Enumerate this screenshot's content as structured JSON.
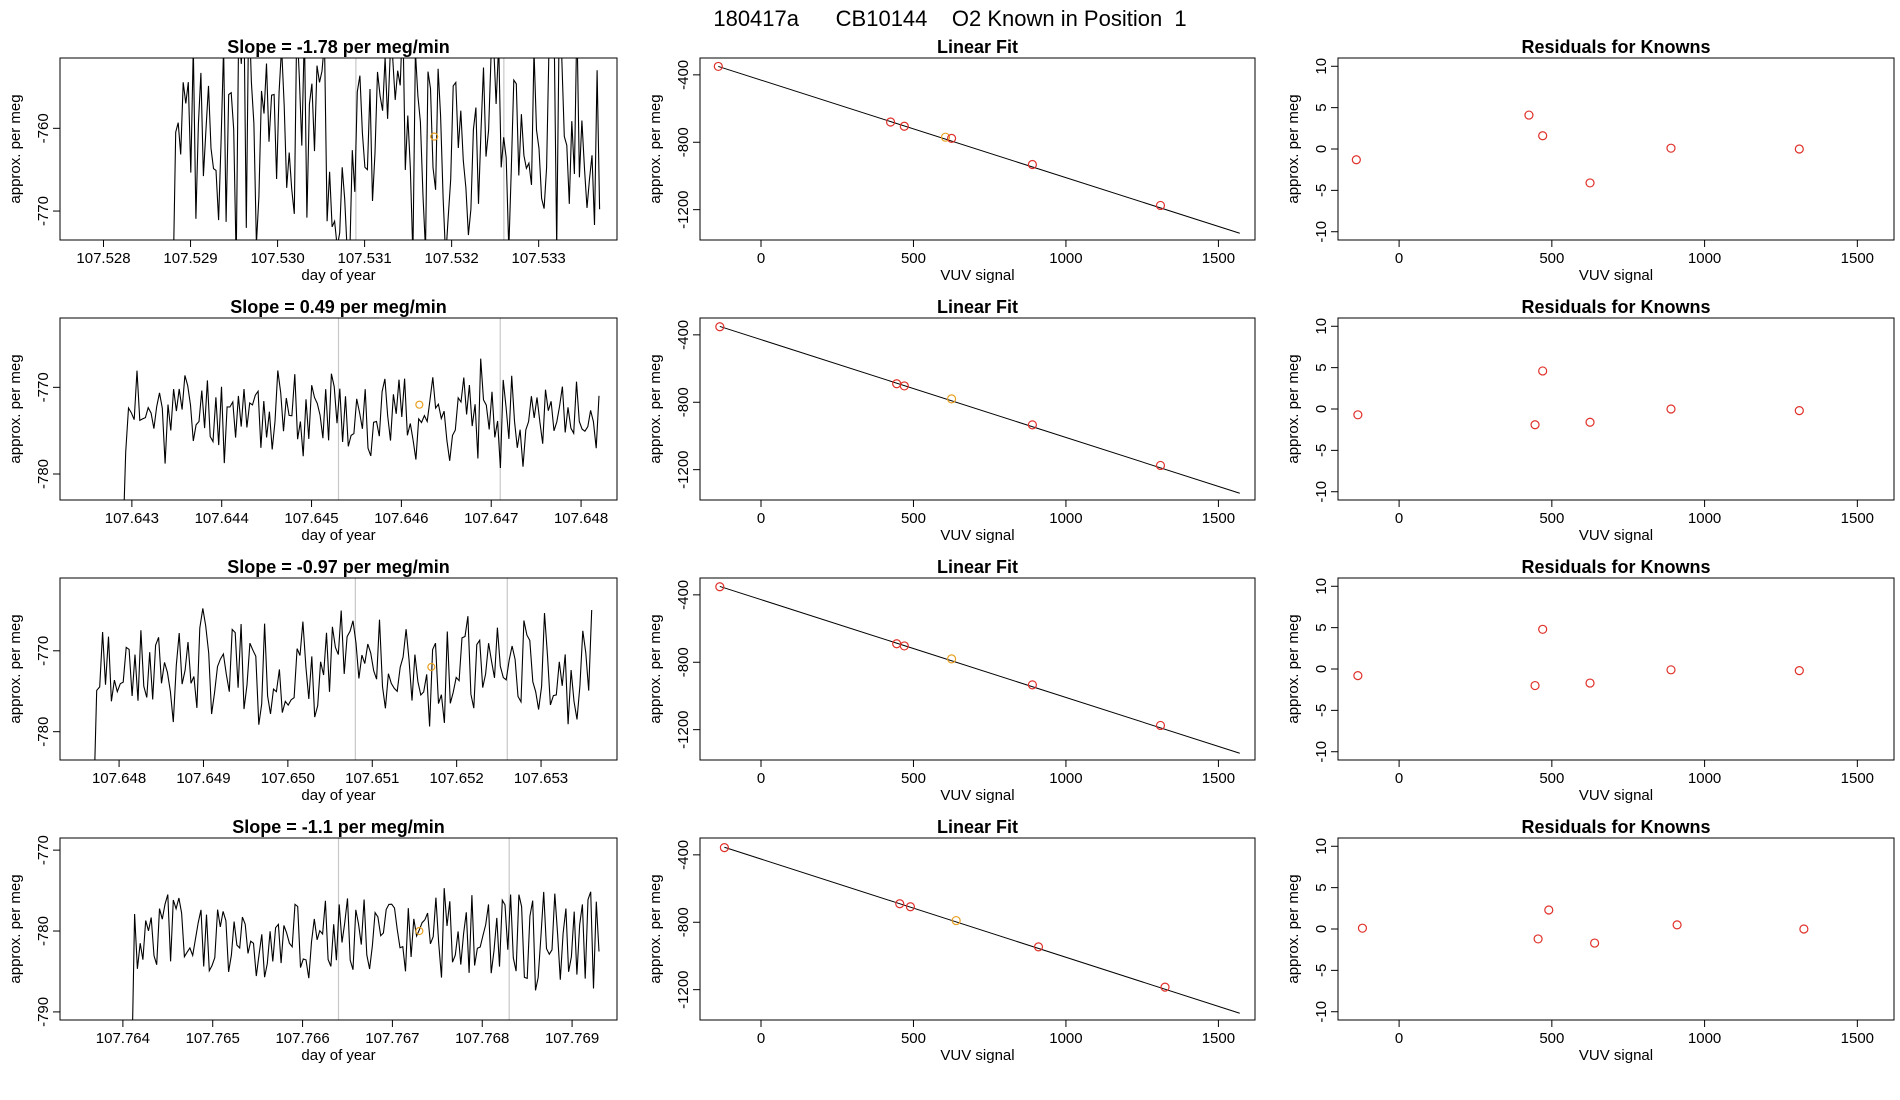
{
  "figure": {
    "title": "180417a      CB10144    O2 Known in Position  1"
  },
  "colors": {
    "line": "#000000",
    "known_marker": "#e0302a",
    "position_marker": "#e8a020",
    "vline": "#c8c8c8"
  },
  "chart_data": [
    {
      "type": "line",
      "row": 1,
      "kind": "timeseries",
      "title": "Slope =  -1.78  per meg/min",
      "xlabel": "day of year",
      "ylabel": "approx. per meg",
      "xlim": [
        107.5275,
        107.5339
      ],
      "ylim": [
        -773.5,
        -751.5
      ],
      "xticks": [
        107.528,
        107.529,
        107.53,
        107.531,
        107.532,
        107.533
      ],
      "xtick_labels": [
        "107.528",
        "107.529",
        "107.530",
        "107.531",
        "107.532",
        "107.533"
      ],
      "yticks": [
        -770,
        -760
      ],
      "ytick_labels": [
        "-770",
        "-760"
      ],
      "vlines": [
        107.5309,
        107.5326
      ],
      "marker": {
        "x": 107.5318,
        "y": -761
      },
      "series": {
        "x_start": 107.5288,
        "x_end": 107.5337,
        "center": -760,
        "amp": 11,
        "seed": 3
      }
    },
    {
      "type": "scatter",
      "row": 1,
      "kind": "fit",
      "title": "Linear Fit",
      "xlabel": "VUV signal",
      "ylabel": "approx. per meg",
      "xlim": [
        -200,
        1620
      ],
      "ylim": [
        -1380,
        -300
      ],
      "xticks": [
        0,
        500,
        1000,
        1500
      ],
      "xtick_labels": [
        "0",
        "500",
        "1000",
        "1500"
      ],
      "yticks": [
        -400,
        -800,
        -1200
      ],
      "ytick_labels": [
        "-400",
        "-800",
        "-1200"
      ],
      "line": {
        "x1": -140,
        "y1": -350,
        "x2": 1570,
        "y2": -1340
      },
      "points": [
        [
          -140,
          -350
        ],
        [
          425,
          -680
        ],
        [
          470,
          -705
        ],
        [
          605,
          -770
        ],
        [
          625,
          -777
        ],
        [
          890,
          -932
        ],
        [
          1310,
          -1175
        ]
      ],
      "highlight_index": 3
    },
    {
      "type": "scatter",
      "row": 1,
      "kind": "residuals",
      "title": "Residuals for Knowns",
      "xlabel": "VUV signal",
      "ylabel": "approx. per meg",
      "xlim": [
        -200,
        1620
      ],
      "ylim": [
        -11,
        11
      ],
      "xticks": [
        0,
        500,
        1000,
        1500
      ],
      "xtick_labels": [
        "0",
        "500",
        "1000",
        "1500"
      ],
      "yticks": [
        10,
        5,
        0,
        -5,
        -10
      ],
      "ytick_labels": [
        "10",
        "5",
        "0",
        "-5",
        "-10"
      ],
      "points": [
        [
          -140,
          -1.3
        ],
        [
          425,
          4.1
        ],
        [
          470,
          1.6
        ],
        [
          625,
          -4.1
        ],
        [
          890,
          0.1
        ],
        [
          1310,
          0.0
        ]
      ]
    },
    {
      "type": "line",
      "row": 2,
      "kind": "timeseries",
      "title": "Slope =  0.49  per meg/min",
      "xlabel": "day of year",
      "ylabel": "approx. per meg",
      "xlim": [
        107.6422,
        107.6484
      ],
      "ylim": [
        -783,
        -762
      ],
      "xticks": [
        107.643,
        107.644,
        107.645,
        107.646,
        107.647,
        107.648
      ],
      "xtick_labels": [
        "107.643",
        "107.644",
        "107.645",
        "107.646",
        "107.647",
        "107.648"
      ],
      "yticks": [
        -780,
        -770
      ],
      "ytick_labels": [
        "-780",
        "-770"
      ],
      "vlines": [
        107.6453,
        107.6471
      ],
      "marker": {
        "x": 107.6462,
        "y": -772
      },
      "series": {
        "x_start": 107.6429,
        "x_end": 107.6482,
        "center": -773,
        "amp": 4,
        "seed": 11
      }
    },
    {
      "type": "scatter",
      "row": 2,
      "kind": "fit",
      "title": "Linear Fit",
      "xlabel": "VUV signal",
      "ylabel": "approx. per meg",
      "xlim": [
        -200,
        1620
      ],
      "ylim": [
        -1380,
        -300
      ],
      "xticks": [
        0,
        500,
        1000,
        1500
      ],
      "xtick_labels": [
        "0",
        "500",
        "1000",
        "1500"
      ],
      "yticks": [
        -400,
        -800,
        -1200
      ],
      "ytick_labels": [
        "-400",
        "-800",
        "-1200"
      ],
      "line": {
        "x1": -135,
        "y1": -350,
        "x2": 1570,
        "y2": -1340
      },
      "points": [
        [
          -135,
          -352
        ],
        [
          445,
          -690
        ],
        [
          470,
          -703
        ],
        [
          625,
          -780
        ],
        [
          890,
          -934
        ],
        [
          1310,
          -1175
        ]
      ],
      "highlight_index": 3
    },
    {
      "type": "scatter",
      "row": 2,
      "kind": "residuals",
      "title": "Residuals for Knowns",
      "xlabel": "VUV signal",
      "ylabel": "approx. per meg",
      "xlim": [
        -200,
        1620
      ],
      "ylim": [
        -11,
        11
      ],
      "xticks": [
        0,
        500,
        1000,
        1500
      ],
      "xtick_labels": [
        "0",
        "500",
        "1000",
        "1500"
      ],
      "yticks": [
        10,
        5,
        0,
        -5,
        -10
      ],
      "ytick_labels": [
        "10",
        "5",
        "0",
        "-5",
        "-10"
      ],
      "points": [
        [
          -135,
          -0.7
        ],
        [
          445,
          -1.9
        ],
        [
          470,
          4.6
        ],
        [
          625,
          -1.6
        ],
        [
          890,
          0.0
        ],
        [
          1310,
          -0.2
        ]
      ]
    },
    {
      "type": "line",
      "row": 3,
      "kind": "timeseries",
      "title": "Slope =  -0.97  per meg/min",
      "xlabel": "day of year",
      "ylabel": "approx. per meg",
      "xlim": [
        107.6473,
        107.6539
      ],
      "ylim": [
        -783.5,
        -761
      ],
      "xticks": [
        107.648,
        107.649,
        107.65,
        107.651,
        107.652,
        107.653
      ],
      "xtick_labels": [
        "107.648",
        "107.649",
        "107.650",
        "107.651",
        "107.652",
        "107.653"
      ],
      "yticks": [
        -780,
        -770
      ],
      "ytick_labels": [
        "-780",
        "-770"
      ],
      "vlines": [
        107.6508,
        107.6526
      ],
      "marker": {
        "x": 107.6517,
        "y": -772
      },
      "series": {
        "x_start": 107.6477,
        "x_end": 107.6536,
        "center": -772,
        "amp": 5,
        "seed": 7
      }
    },
    {
      "type": "scatter",
      "row": 3,
      "kind": "fit",
      "title": "Linear Fit",
      "xlabel": "VUV signal",
      "ylabel": "approx. per meg",
      "xlim": [
        -200,
        1620
      ],
      "ylim": [
        -1380,
        -300
      ],
      "xticks": [
        0,
        500,
        1000,
        1500
      ],
      "xtick_labels": [
        "0",
        "500",
        "1000",
        "1500"
      ],
      "yticks": [
        -400,
        -800,
        -1200
      ],
      "ytick_labels": [
        "-400",
        "-800",
        "-1200"
      ],
      "line": {
        "x1": -135,
        "y1": -350,
        "x2": 1570,
        "y2": -1340
      },
      "points": [
        [
          -135,
          -352
        ],
        [
          445,
          -690
        ],
        [
          470,
          -703
        ],
        [
          625,
          -780
        ],
        [
          890,
          -934
        ],
        [
          1310,
          -1175
        ]
      ],
      "highlight_index": 3
    },
    {
      "type": "scatter",
      "row": 3,
      "kind": "residuals",
      "title": "Residuals for Knowns",
      "xlabel": "VUV signal",
      "ylabel": "approx. per meg",
      "xlim": [
        -200,
        1620
      ],
      "ylim": [
        -11,
        11
      ],
      "xticks": [
        0,
        500,
        1000,
        1500
      ],
      "xtick_labels": [
        "0",
        "500",
        "1000",
        "1500"
      ],
      "yticks": [
        10,
        5,
        0,
        -5,
        -10
      ],
      "ytick_labels": [
        "10",
        "5",
        "0",
        "-5",
        "-10"
      ],
      "points": [
        [
          -135,
          -0.8
        ],
        [
          445,
          -2.0
        ],
        [
          470,
          4.8
        ],
        [
          625,
          -1.7
        ],
        [
          890,
          -0.1
        ],
        [
          1310,
          -0.2
        ]
      ]
    },
    {
      "type": "line",
      "row": 4,
      "kind": "timeseries",
      "title": "Slope =  -1.1  per meg/min",
      "xlabel": "day of year",
      "ylabel": "approx. per meg",
      "xlim": [
        107.7633,
        107.7695
      ],
      "ylim": [
        -791,
        -768.5
      ],
      "xticks": [
        107.764,
        107.765,
        107.766,
        107.767,
        107.768,
        107.769
      ],
      "xtick_labels": [
        "107.764",
        "107.765",
        "107.766",
        "107.767",
        "107.768",
        "107.769"
      ],
      "yticks": [
        -790,
        -780,
        -770
      ],
      "ytick_labels": [
        "-790",
        "-780",
        "-770"
      ],
      "vlines": [
        107.7664,
        107.7683
      ],
      "marker": {
        "x": 107.7673,
        "y": -780
      },
      "series": {
        "x_start": 107.7641,
        "x_end": 107.7693,
        "center": -781,
        "amp": 4.5,
        "seed": 5
      }
    },
    {
      "type": "scatter",
      "row": 4,
      "kind": "fit",
      "title": "Linear Fit",
      "xlabel": "VUV signal",
      "ylabel": "approx. per meg",
      "xlim": [
        -200,
        1620
      ],
      "ylim": [
        -1380,
        -300
      ],
      "xticks": [
        0,
        500,
        1000,
        1500
      ],
      "xtick_labels": [
        "0",
        "500",
        "1000",
        "1500"
      ],
      "yticks": [
        -400,
        -800,
        -1200
      ],
      "ytick_labels": [
        "-400",
        "-800",
        "-1200"
      ],
      "line": {
        "x1": -120,
        "y1": -355,
        "x2": 1570,
        "y2": -1340
      },
      "points": [
        [
          -120,
          -357
        ],
        [
          455,
          -690
        ],
        [
          490,
          -708
        ],
        [
          640,
          -790
        ],
        [
          910,
          -946
        ],
        [
          1325,
          -1185
        ]
      ],
      "highlight_index": 3
    },
    {
      "type": "scatter",
      "row": 4,
      "kind": "residuals",
      "title": "Residuals for Knowns",
      "xlabel": "VUV signal",
      "ylabel": "approx. per meg",
      "xlim": [
        -200,
        1620
      ],
      "ylim": [
        -11,
        11
      ],
      "xticks": [
        0,
        500,
        1000,
        1500
      ],
      "xtick_labels": [
        "0",
        "500",
        "1000",
        "1500"
      ],
      "yticks": [
        10,
        5,
        0,
        -5,
        -10
      ],
      "ytick_labels": [
        "10",
        "5",
        "0",
        "-5",
        "-10"
      ],
      "points": [
        [
          -120,
          0.1
        ],
        [
          455,
          -1.2
        ],
        [
          490,
          2.3
        ],
        [
          640,
          -1.7
        ],
        [
          910,
          0.5
        ],
        [
          1325,
          0.0
        ]
      ]
    }
  ]
}
